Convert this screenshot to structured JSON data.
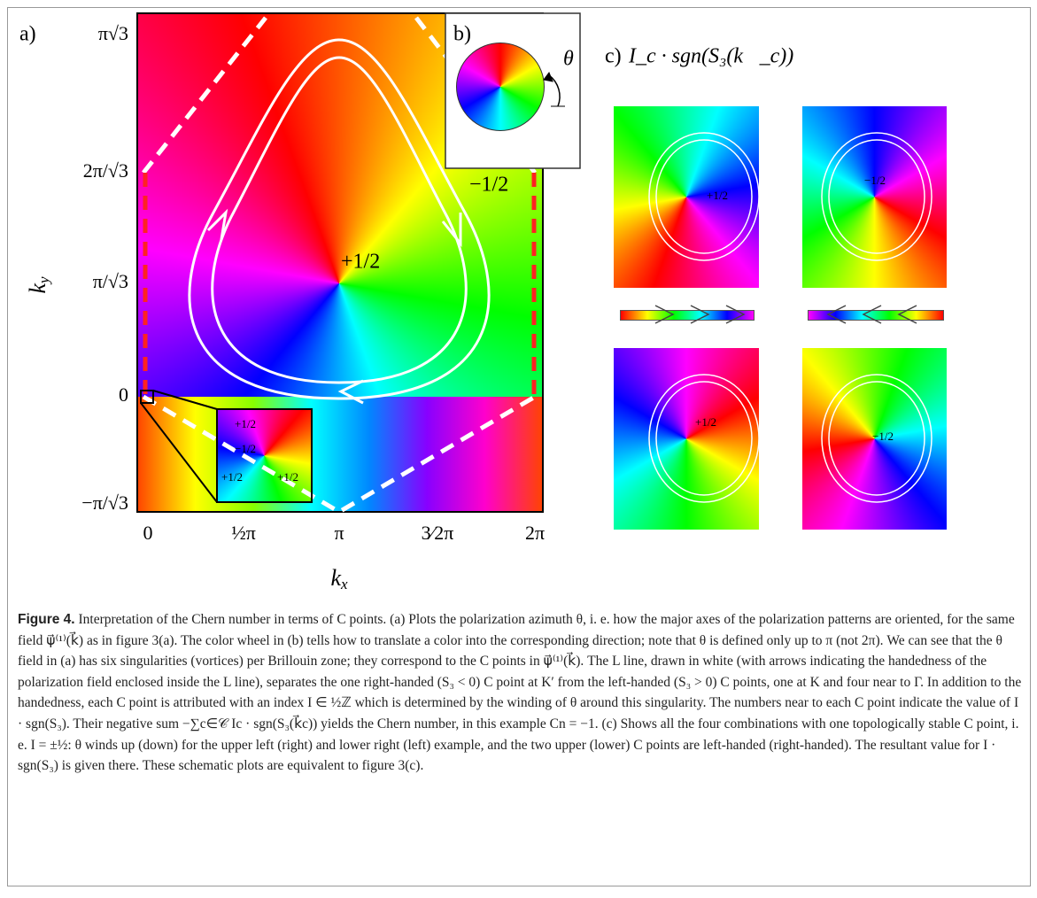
{
  "panels": {
    "a": {
      "label": "a)",
      "y_axis_label": {
        "base": "k",
        "sub": "y"
      },
      "x_axis_label": {
        "base": "k",
        "sub": "x"
      },
      "yticks": [
        "π√3",
        "2π/√3",
        "π/√3",
        "0",
        "−π/√3"
      ],
      "xticks": [
        "0",
        "½π",
        "π",
        "3⁄2π",
        "2π"
      ],
      "annotations": [
        "+1/2",
        "−1/2"
      ],
      "inset_labels": [
        "+1/2",
        "−1/2",
        "+1/2",
        "+1/2"
      ]
    },
    "b": {
      "label": "b)",
      "symbol": "θ"
    },
    "c": {
      "label": "c)",
      "title": "I_c · sgn(S₃(k⃗_c))",
      "plots": [
        "+1/2",
        "−1/2",
        "+1/2",
        "−1/2"
      ]
    }
  },
  "caption": {
    "label": "Figure 4.",
    "text": "Interpretation of the Chern number in terms of C points. (a) Plots the polarization azimuth θ, i. e. how the major axes of the polarization patterns are oriented, for the same field ψ⃗⁽¹⁾(k⃗) as in figure 3(a). The color wheel in (b) tells how to translate a color into the corresponding direction; note that θ is defined only up to π (not 2π). We can see that the θ field in (a) has six singularities (vortices) per Brillouin zone; they correspond to the C points in ψ⃗⁽¹⁾(k⃗). The L line, drawn in white (with arrows indicating the handedness of the polarization field enclosed inside the L line), separates the one right-handed (S₃ < 0) C point at K′ from the left-handed (S₃ > 0) C points, one at K and four near to Γ. In addition to the handedness, each C point is attributed with an index I ∈ ½ℤ which is determined by the winding of θ around this singularity. The numbers near to each C point indicate the value of I · sgn(S₃). Their negative sum −∑c∈𝒞 Ic · sgn(S₃(k⃗c)) yields the Chern number, in this example Cn = −1. (c) Shows all the four combinations with one topologically stable C point, i. e. I = ±½: θ winds up (down) for the upper left (right) and lower right (left) example, and the two upper (lower) C points are left-handed (right-handed). The resultant value for I · sgn(S₃) is given there. These schematic plots are equivalent to figure 3(c)."
  }
}
